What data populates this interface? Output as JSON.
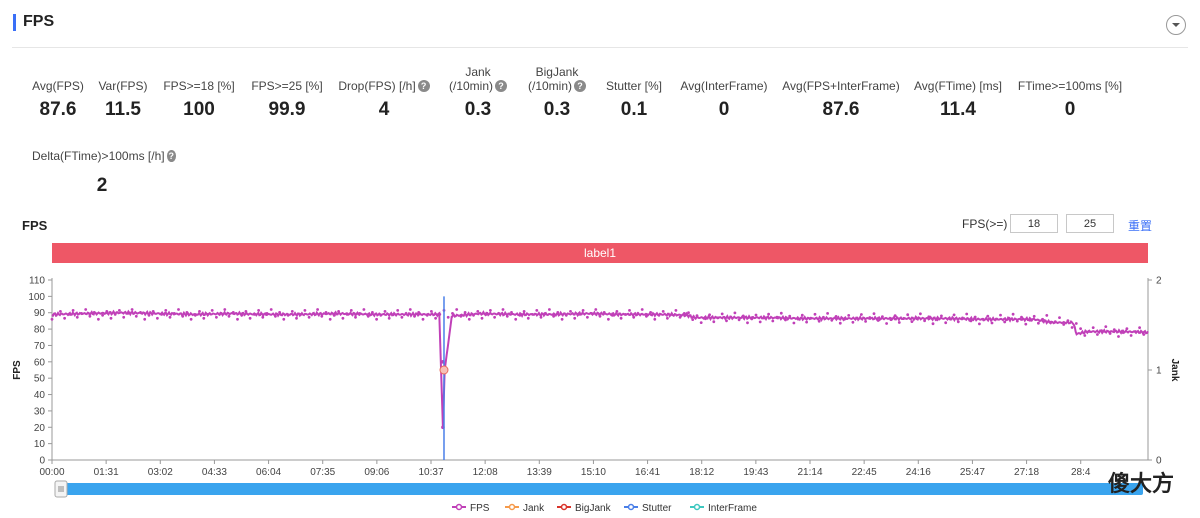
{
  "header": {
    "title": "FPS"
  },
  "metrics_row1": [
    {
      "label": "Avg(FPS)",
      "value": "87.6",
      "help": false
    },
    {
      "label": "Var(FPS)",
      "value": "11.5",
      "help": false
    },
    {
      "label": "FPS>=18 [%]",
      "value": "100",
      "help": false
    },
    {
      "label": "FPS>=25 [%]",
      "value": "99.9",
      "help": false
    },
    {
      "label": "Drop(FPS) [/h]",
      "value": "4",
      "help": true
    },
    {
      "label": "Jank",
      "label2": "(/10min)",
      "value": "0.3",
      "help": true
    },
    {
      "label": "BigJank",
      "label2": "(/10min)",
      "value": "0.3",
      "help": true
    },
    {
      "label": "Stutter [%]",
      "value": "0.1",
      "help": false
    },
    {
      "label": "Avg(InterFrame)",
      "value": "0",
      "help": false
    },
    {
      "label": "Avg(FPS+InterFrame)",
      "value": "87.6",
      "help": false
    },
    {
      "label": "Avg(FTime) [ms]",
      "value": "11.4",
      "help": false
    },
    {
      "label": "FTime>=100ms [%]",
      "value": "0",
      "help": false
    }
  ],
  "metrics_row2": [
    {
      "label": "Delta(FTime)>100ms [/h]",
      "value": "2",
      "help": true
    }
  ],
  "chart_section": {
    "title": "FPS",
    "threshold_label": "FPS(>=)",
    "threshold1": "18",
    "threshold2": "25",
    "reset_label": "重置",
    "band_label": "label1"
  },
  "chart_data": {
    "type": "line",
    "ylabel": "FPS",
    "y2label": "Jank",
    "ylim": [
      0,
      110
    ],
    "y2lim": [
      0,
      2
    ],
    "yticks": [
      "0",
      "10",
      "20",
      "30",
      "40",
      "50",
      "60",
      "70",
      "80",
      "90",
      "100",
      "110"
    ],
    "y2ticks": [
      "0",
      "1",
      "2"
    ],
    "xticks": [
      "00:00",
      "01:31",
      "03:02",
      "04:33",
      "06:04",
      "07:35",
      "09:06",
      "10:37",
      "12:08",
      "13:39",
      "15:10",
      "16:41",
      "18:12",
      "19:43",
      "21:14",
      "22:45",
      "24:16",
      "25:47",
      "27:18",
      "28:4"
    ],
    "series": [
      {
        "name": "FPS",
        "color": "#c040b8",
        "x_minutes": [
          0,
          1,
          2,
          3,
          4,
          5,
          6,
          7,
          8,
          9,
          10,
          10.85,
          10.95,
          11,
          11.2,
          12,
          13,
          14,
          15,
          16,
          17,
          17.8,
          18,
          19,
          20,
          21,
          22,
          23,
          24,
          25,
          26,
          27,
          27.5,
          28,
          28.6,
          28.7,
          29,
          30,
          30.7
        ],
        "values": [
          89,
          89.5,
          90,
          89.5,
          89,
          89.5,
          89,
          89,
          89.5,
          89,
          89,
          89,
          20,
          55,
          88,
          89.5,
          89,
          89,
          89.5,
          89,
          89,
          88.5,
          87,
          87,
          87,
          86.5,
          86.5,
          86.5,
          86.5,
          86.5,
          86,
          86,
          86,
          84,
          84,
          77,
          78.5,
          78.5,
          78
        ]
      },
      {
        "name": "Jank",
        "color": "#f59a4a",
        "x_minutes": [
          10.98
        ],
        "values": [
          1
        ]
      },
      {
        "name": "BigJank",
        "color": "#d9342b",
        "x_minutes": [],
        "values": []
      },
      {
        "name": "Stutter",
        "color": "#4a7fe8",
        "x_minutes": [
          10.98
        ],
        "values": [
          100
        ]
      },
      {
        "name": "InterFrame",
        "color": "#3ec8c0",
        "x_minutes": [],
        "values": []
      }
    ]
  },
  "watermark": "傻大方"
}
